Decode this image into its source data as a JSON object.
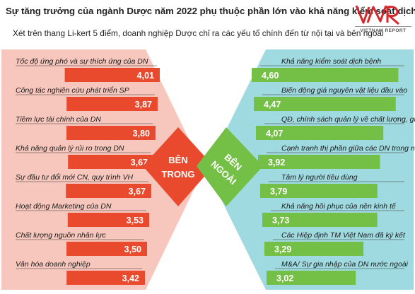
{
  "header": {
    "title": "Sự tăng trưởng của ngành Dược năm 2022 phụ thuộc phần lớn vào khả năng kiểm soát dịch",
    "subtitle": "Xét trên thang Li-kert 5 điểm, doanh nghiệp Dược chỉ ra các yếu tố chính đến từ nội tại và bên ngoài"
  },
  "logo": {
    "mark": "VNR",
    "text": "VIETNAM REPORT",
    "color": "#d7262c"
  },
  "colors": {
    "left_panel": "#f7c7bd",
    "left_bar": "#e94a2e",
    "right_panel": "#9fdae0",
    "right_bar": "#74bf45",
    "center_left": "#e94a2e",
    "center_right": "#74bf45"
  },
  "center": {
    "left_line1": "BÊN",
    "left_line2": "TRONG",
    "right_line1": "BÊN",
    "right_line2": "NGOÀI"
  },
  "chart_data": [
    {
      "type": "bar",
      "title": "",
      "categories": [
        "Tốc độ ứng phó và sự thích ứng của DN",
        "Công tác nghiên cứu phát triển SP",
        "Tiềm lực tài chính của DN",
        "Khả năng quản lý rủi ro trong DN",
        "Sự đầu tư đổi mới CN, quy trình VH",
        "Hoạt động Marketing của DN",
        "Chất lượng nguồn nhân lực",
        "Văn hóa doanh nghiệp"
      ],
      "values": [
        4.01,
        3.87,
        3.8,
        3.67,
        3.67,
        3.53,
        3.5,
        3.42
      ],
      "value_labels": [
        "4,01",
        "3,87",
        "3,80",
        "3,67",
        "3,67",
        "3,53",
        "3,50",
        "3,42"
      ],
      "xlabel": "",
      "ylabel": ""
    },
    {
      "type": "bar",
      "title": "",
      "categories": [
        "Khả năng kiểm soát dịch bệnh",
        "Biến động giá nguyên vật liệu đầu vào",
        "QĐ, chính sách quản lý về chất lượng, giá",
        "Cạnh tranh thị phần giữa các DN trong nước",
        "Tâm lý người tiêu dùng",
        "Khả năng hồi phục của nền kinh tế",
        "Các Hiệp định TM Việt Nam đã ký kết",
        "M&A/ Sự gia nhập của DN nước ngoài"
      ],
      "values": [
        4.6,
        4.47,
        4.07,
        3.92,
        3.79,
        3.73,
        3.29,
        3.02
      ],
      "value_labels": [
        "4,60",
        "4,47",
        "4,07",
        "3,92",
        "3,79",
        "3,73",
        "3,29",
        "3,02"
      ],
      "xlabel": "",
      "ylabel": ""
    }
  ]
}
